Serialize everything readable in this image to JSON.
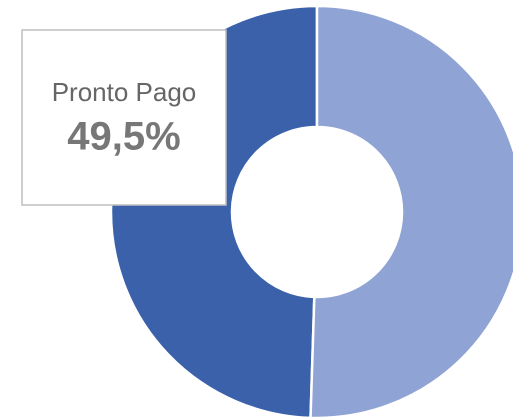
{
  "chart_data": {
    "type": "donut",
    "categories": [
      "Pronto Pago",
      null
    ],
    "values": [
      49.5,
      50.5
    ],
    "value_labels": [
      "49,5%",
      null
    ],
    "colors": [
      "#3a61aa",
      "#8fa4d5"
    ]
  }
}
